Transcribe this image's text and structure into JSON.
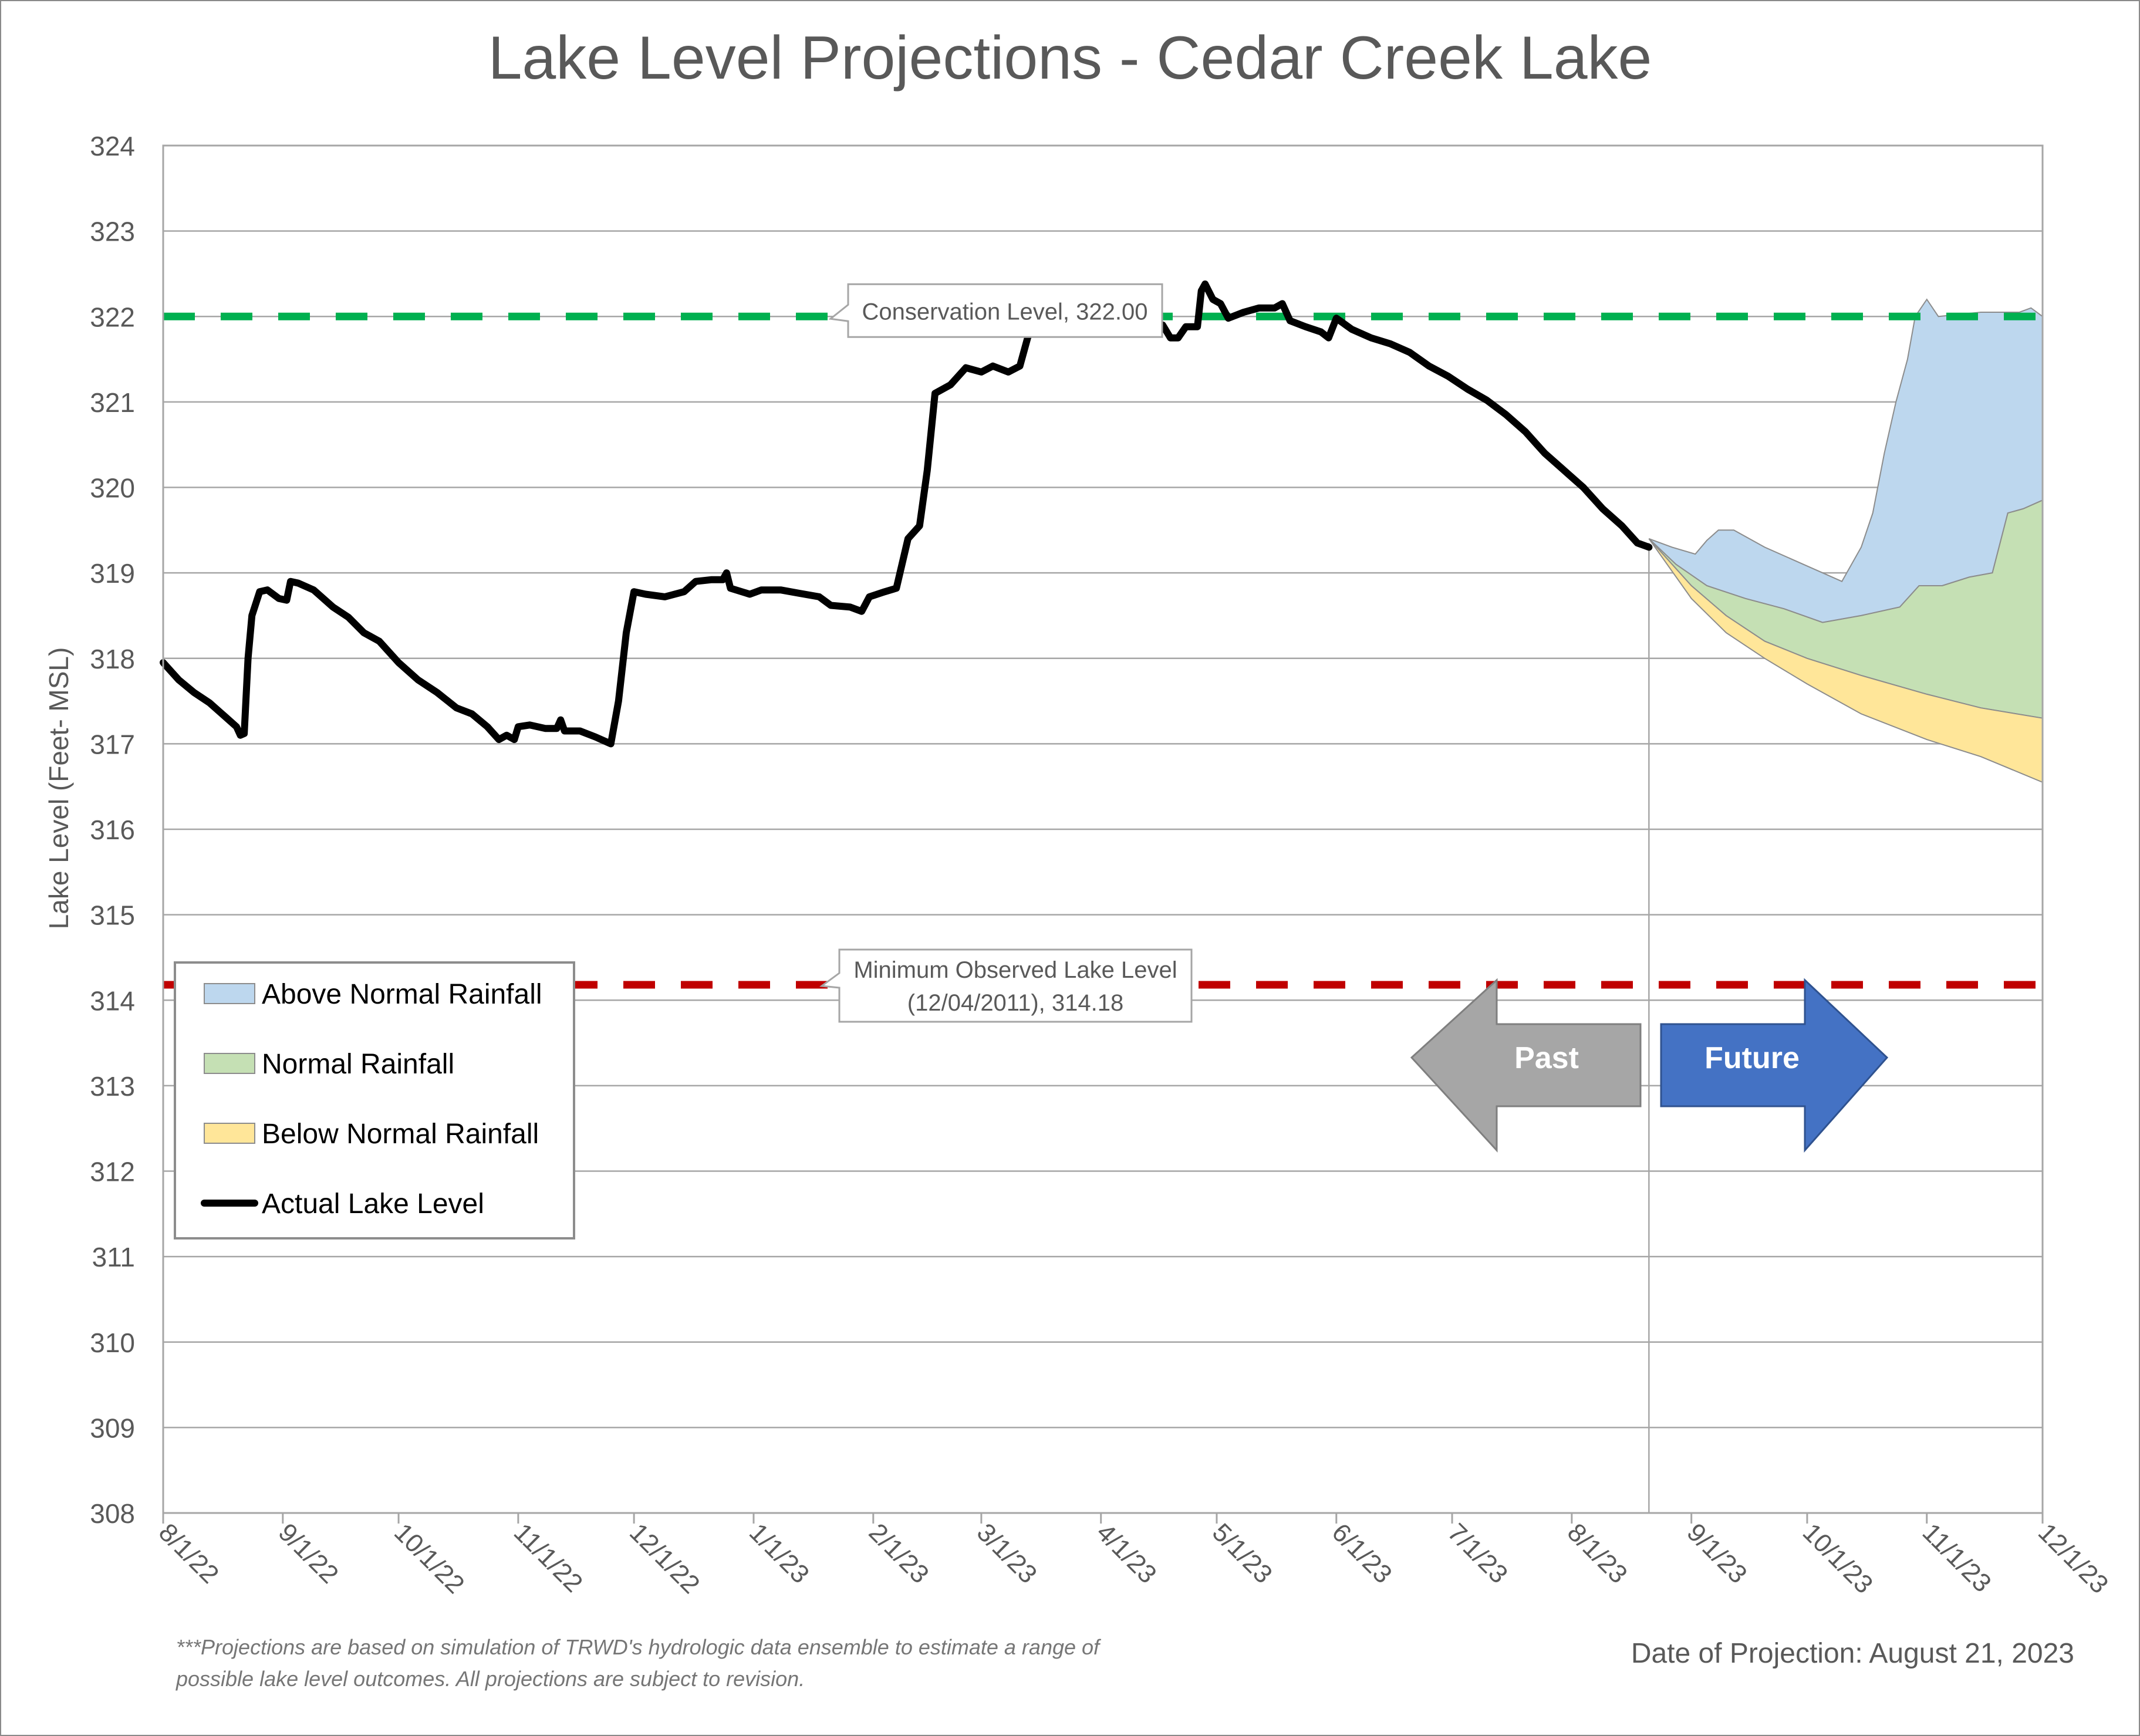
{
  "title": "Lake Level Projections - Cedar Creek Lake",
  "footnote": "***Projections are based on simulation of TRWD's hydrologic data ensemble to estimate a range of possible lake level outcomes.  All projections are subject to revision.",
  "projection_date": "Date of Projection: August 21, 2023",
  "arrows": {
    "past": "Past",
    "future": "Future"
  },
  "colors": {
    "above": "#bdd7ee",
    "normal": "#c5e0b4",
    "below": "#ffe699",
    "actual": "#000000",
    "conservation": "#00b050",
    "minimum": "#c00000",
    "past_arrow": "#a6a6a6",
    "future_arrow": "#4472c4"
  },
  "chart_data": {
    "type": "area",
    "title": "Lake Level Projections - Cedar Creek Lake",
    "ylabel": "Lake Level (Feet- MSL)",
    "xlabel": "",
    "ylim": [
      308,
      324
    ],
    "yticks": [
      308,
      309,
      310,
      311,
      312,
      313,
      314,
      315,
      316,
      317,
      318,
      319,
      320,
      321,
      322,
      323,
      324
    ],
    "xlim": [
      "2022-08-01",
      "2023-12-01"
    ],
    "xtick_dates": [
      "2022-08-01",
      "2022-09-01",
      "2022-10-01",
      "2022-11-01",
      "2022-12-01",
      "2023-01-01",
      "2023-02-01",
      "2023-03-01",
      "2023-04-01",
      "2023-05-01",
      "2023-06-01",
      "2023-07-01",
      "2023-08-01",
      "2023-09-01",
      "2023-10-01",
      "2023-11-01",
      "2023-12-01"
    ],
    "xtick_labels": [
      "8/1/22",
      "9/1/22",
      "10/1/22",
      "11/1/22",
      "12/1/22",
      "1/1/23",
      "2/1/23",
      "3/1/23",
      "4/1/23",
      "5/1/23",
      "6/1/23",
      "7/1/23",
      "8/1/23",
      "9/1/23",
      "10/1/23",
      "11/1/23",
      "12/1/23"
    ],
    "grid": "horizontal",
    "legend_position": "bottom-left",
    "projection_start": "2023-08-21",
    "reference_lines": [
      {
        "name": "Conservation Level",
        "value": 322.0,
        "label": "Conservation Level, 322.00"
      },
      {
        "name": "Minimum Observed Lake Level",
        "value": 314.18,
        "label_line1": "Minimum Observed Lake Level",
        "label_line2": "(12/04/2011), 314.18"
      }
    ],
    "series": [
      {
        "name": "Actual Lake Level",
        "kind": "line",
        "points": [
          [
            "2022-08-01",
            317.95
          ],
          [
            "2022-08-05",
            317.75
          ],
          [
            "2022-08-09",
            317.6
          ],
          [
            "2022-08-13",
            317.48
          ],
          [
            "2022-08-17",
            317.32
          ],
          [
            "2022-08-20",
            317.2
          ],
          [
            "2022-08-21",
            317.1
          ],
          [
            "2022-08-22",
            317.12
          ],
          [
            "2022-08-23",
            318.0
          ],
          [
            "2022-08-24",
            318.5
          ],
          [
            "2022-08-26",
            318.78
          ],
          [
            "2022-08-28",
            318.8
          ],
          [
            "2022-08-31",
            318.7
          ],
          [
            "2022-09-02",
            318.68
          ],
          [
            "2022-09-03",
            318.9
          ],
          [
            "2022-09-05",
            318.88
          ],
          [
            "2022-09-09",
            318.8
          ],
          [
            "2022-09-14",
            318.6
          ],
          [
            "2022-09-18",
            318.48
          ],
          [
            "2022-09-22",
            318.3
          ],
          [
            "2022-09-26",
            318.2
          ],
          [
            "2022-10-01",
            317.95
          ],
          [
            "2022-10-06",
            317.75
          ],
          [
            "2022-10-11",
            317.6
          ],
          [
            "2022-10-16",
            317.42
          ],
          [
            "2022-10-20",
            317.35
          ],
          [
            "2022-10-24",
            317.2
          ],
          [
            "2022-10-27",
            317.05
          ],
          [
            "2022-10-29",
            317.1
          ],
          [
            "2022-10-31",
            317.05
          ],
          [
            "2022-11-01",
            317.2
          ],
          [
            "2022-11-04",
            317.22
          ],
          [
            "2022-11-08",
            317.18
          ],
          [
            "2022-11-11",
            317.18
          ],
          [
            "2022-11-12",
            317.28
          ],
          [
            "2022-11-13",
            317.15
          ],
          [
            "2022-11-17",
            317.15
          ],
          [
            "2022-11-21",
            317.08
          ],
          [
            "2022-11-25",
            317.0
          ],
          [
            "2022-11-27",
            317.5
          ],
          [
            "2022-11-29",
            318.3
          ],
          [
            "2022-12-01",
            318.78
          ],
          [
            "2022-12-04",
            318.75
          ],
          [
            "2022-12-09",
            318.72
          ],
          [
            "2022-12-14",
            318.78
          ],
          [
            "2022-12-17",
            318.9
          ],
          [
            "2022-12-21",
            318.92
          ],
          [
            "2022-12-24",
            318.92
          ],
          [
            "2022-12-25",
            319.0
          ],
          [
            "2022-12-26",
            318.82
          ],
          [
            "2022-12-31",
            318.75
          ],
          [
            "2023-01-03",
            318.8
          ],
          [
            "2023-01-08",
            318.8
          ],
          [
            "2023-01-13",
            318.76
          ],
          [
            "2023-01-18",
            318.72
          ],
          [
            "2023-01-21",
            318.62
          ],
          [
            "2023-01-26",
            318.6
          ],
          [
            "2023-01-29",
            318.55
          ],
          [
            "2023-01-31",
            318.72
          ],
          [
            "2023-02-04",
            318.78
          ],
          [
            "2023-02-07",
            318.82
          ],
          [
            "2023-02-10",
            319.4
          ],
          [
            "2023-02-13",
            319.55
          ],
          [
            "2023-02-15",
            320.2
          ],
          [
            "2023-02-17",
            321.1
          ],
          [
            "2023-02-21",
            321.2
          ],
          [
            "2023-02-25",
            321.4
          ],
          [
            "2023-03-01",
            321.35
          ],
          [
            "2023-03-04",
            321.42
          ],
          [
            "2023-03-08",
            321.35
          ],
          [
            "2023-03-11",
            321.42
          ],
          [
            "2023-03-13",
            321.75
          ],
          [
            "2023-03-15",
            322.0
          ]
        ]
      },
      {
        "name": "Actual Lake Level",
        "kind": "line",
        "points": [
          [
            "2023-04-17",
            321.9
          ],
          [
            "2023-04-19",
            321.75
          ],
          [
            "2023-04-21",
            321.75
          ],
          [
            "2023-04-23",
            321.88
          ],
          [
            "2023-04-26",
            321.88
          ],
          [
            "2023-04-27",
            322.3
          ],
          [
            "2023-04-28",
            322.38
          ],
          [
            "2023-04-30",
            322.2
          ],
          [
            "2023-05-02",
            322.15
          ],
          [
            "2023-05-04",
            321.98
          ],
          [
            "2023-05-08",
            322.05
          ],
          [
            "2023-05-12",
            322.1
          ],
          [
            "2023-05-16",
            322.1
          ],
          [
            "2023-05-18",
            322.15
          ],
          [
            "2023-05-20",
            321.95
          ],
          [
            "2023-05-24",
            321.88
          ],
          [
            "2023-05-28",
            321.82
          ],
          [
            "2023-05-30",
            321.75
          ],
          [
            "2023-06-01",
            321.98
          ],
          [
            "2023-06-05",
            321.85
          ],
          [
            "2023-06-10",
            321.75
          ],
          [
            "2023-06-15",
            321.68
          ],
          [
            "2023-06-20",
            321.58
          ],
          [
            "2023-06-25",
            321.42
          ],
          [
            "2023-06-30",
            321.3
          ],
          [
            "2023-07-05",
            321.15
          ],
          [
            "2023-07-10",
            321.02
          ],
          [
            "2023-07-15",
            320.85
          ],
          [
            "2023-07-20",
            320.65
          ],
          [
            "2023-07-25",
            320.4
          ],
          [
            "2023-07-30",
            320.2
          ],
          [
            "2023-08-04",
            320.0
          ],
          [
            "2023-08-09",
            319.75
          ],
          [
            "2023-08-14",
            319.55
          ],
          [
            "2023-08-18",
            319.35
          ],
          [
            "2023-08-21",
            319.3
          ]
        ]
      },
      {
        "name": "Above Normal Rainfall",
        "kind": "area",
        "upper": [
          [
            "2023-08-21",
            319.4
          ],
          [
            "2023-08-27",
            319.3
          ],
          [
            "2023-09-02",
            319.22
          ],
          [
            "2023-09-05",
            319.38
          ],
          [
            "2023-09-08",
            319.5
          ],
          [
            "2023-09-12",
            319.5
          ],
          [
            "2023-09-20",
            319.3
          ],
          [
            "2023-09-30",
            319.1
          ],
          [
            "2023-10-05",
            319.0
          ],
          [
            "2023-10-10",
            318.9
          ],
          [
            "2023-10-15",
            319.3
          ],
          [
            "2023-10-18",
            319.7
          ],
          [
            "2023-10-21",
            320.4
          ],
          [
            "2023-10-24",
            321.0
          ],
          [
            "2023-10-27",
            321.5
          ],
          [
            "2023-10-29",
            322.0
          ],
          [
            "2023-11-01",
            322.2
          ],
          [
            "2023-11-04",
            322.0
          ],
          [
            "2023-11-15",
            322.05
          ],
          [
            "2023-11-25",
            322.05
          ],
          [
            "2023-11-28",
            322.1
          ],
          [
            "2023-12-01",
            322.0
          ]
        ],
        "lower_series": "Normal Rainfall"
      },
      {
        "name": "Normal Rainfall",
        "kind": "area",
        "upper": [
          [
            "2023-08-21",
            319.4
          ],
          [
            "2023-08-28",
            319.1
          ],
          [
            "2023-09-05",
            318.85
          ],
          [
            "2023-09-15",
            318.7
          ],
          [
            "2023-09-25",
            318.58
          ],
          [
            "2023-10-05",
            318.42
          ],
          [
            "2023-10-15",
            318.5
          ],
          [
            "2023-10-25",
            318.6
          ],
          [
            "2023-10-30",
            318.85
          ],
          [
            "2023-11-05",
            318.85
          ],
          [
            "2023-11-12",
            318.95
          ],
          [
            "2023-11-18",
            319.0
          ],
          [
            "2023-11-22",
            319.7
          ],
          [
            "2023-11-26",
            319.75
          ],
          [
            "2023-12-01",
            319.85
          ]
        ],
        "lower_series": "Below Normal Rainfall"
      },
      {
        "name": "Below Normal Rainfall",
        "kind": "area",
        "upper": [
          [
            "2023-08-21",
            319.4
          ],
          [
            "2023-09-01",
            318.85
          ],
          [
            "2023-09-10",
            318.5
          ],
          [
            "2023-09-20",
            318.2
          ],
          [
            "2023-10-01",
            318.0
          ],
          [
            "2023-10-15",
            317.8
          ],
          [
            "2023-11-01",
            317.58
          ],
          [
            "2023-11-15",
            317.42
          ],
          [
            "2023-12-01",
            317.3
          ]
        ],
        "lower": [
          [
            "2023-08-21",
            319.4
          ],
          [
            "2023-09-01",
            318.7
          ],
          [
            "2023-09-10",
            318.3
          ],
          [
            "2023-09-20",
            318.0
          ],
          [
            "2023-10-01",
            317.7
          ],
          [
            "2023-10-15",
            317.35
          ],
          [
            "2023-11-01",
            317.05
          ],
          [
            "2023-11-15",
            316.85
          ],
          [
            "2023-12-01",
            316.55
          ]
        ]
      }
    ],
    "legend": [
      "Above Normal Rainfall",
      "Normal Rainfall",
      "Below Normal Rainfall",
      "Actual Lake Level"
    ]
  }
}
